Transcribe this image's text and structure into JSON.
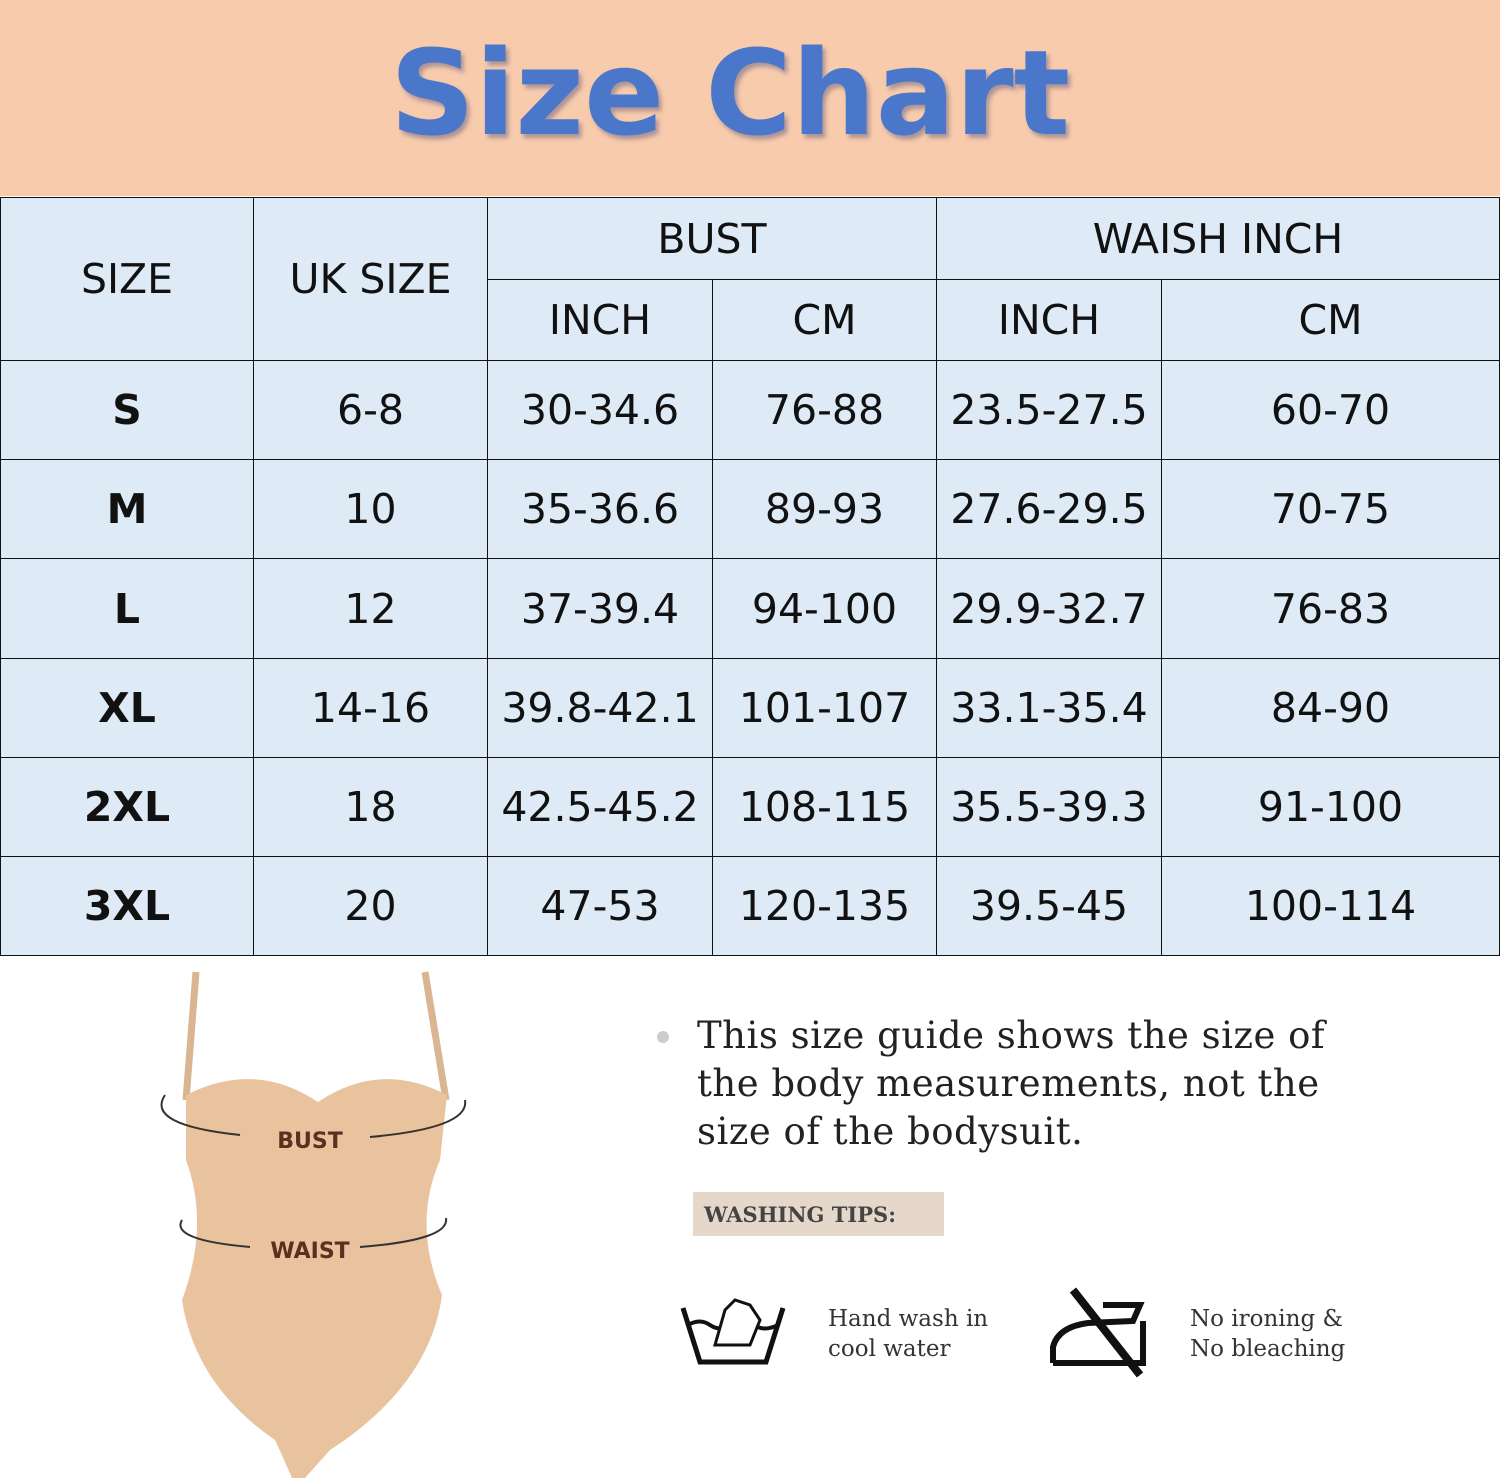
{
  "header": {
    "title": "Size Chart"
  },
  "table": {
    "headers": [
      "SIZE",
      "UK SIZE",
      "BUST",
      "WAISH INCH"
    ],
    "subheaders": [
      "INCH",
      "CM",
      "INCH",
      "CM"
    ],
    "rows": [
      [
        "S",
        "6-8",
        "30-34.6",
        "76-88",
        "23.5-27.5",
        "60-70"
      ],
      [
        "M",
        "10",
        "35-36.6",
        "89-93",
        "27.6-29.5",
        "70-75"
      ],
      [
        "L",
        "12",
        "37-39.4",
        "94-100",
        "29.9-32.7",
        "76-83"
      ],
      [
        "XL",
        "14-16",
        "39.8-42.1",
        "101-107",
        "33.1-35.4",
        "84-90"
      ],
      [
        "2XL",
        "18",
        "42.5-45.2",
        "108-115",
        "35.5-39.3",
        "91-100"
      ],
      [
        "3XL",
        "20",
        "47-53",
        "120-135",
        "39.5-45",
        "100-114"
      ]
    ]
  },
  "figure": {
    "labels": [
      "BUST",
      "WAIST"
    ]
  },
  "note": {
    "lines": [
      "This size guide shows the size of",
      "the body measurements, not the",
      "size of the bodysuit."
    ]
  },
  "washing": {
    "title": "WASHING TIPS:",
    "tips": [
      {
        "lines": [
          "Hand wash in",
          "cool water"
        ]
      },
      {
        "lines": [
          "No ironing &",
          "No bleaching"
        ]
      }
    ]
  }
}
